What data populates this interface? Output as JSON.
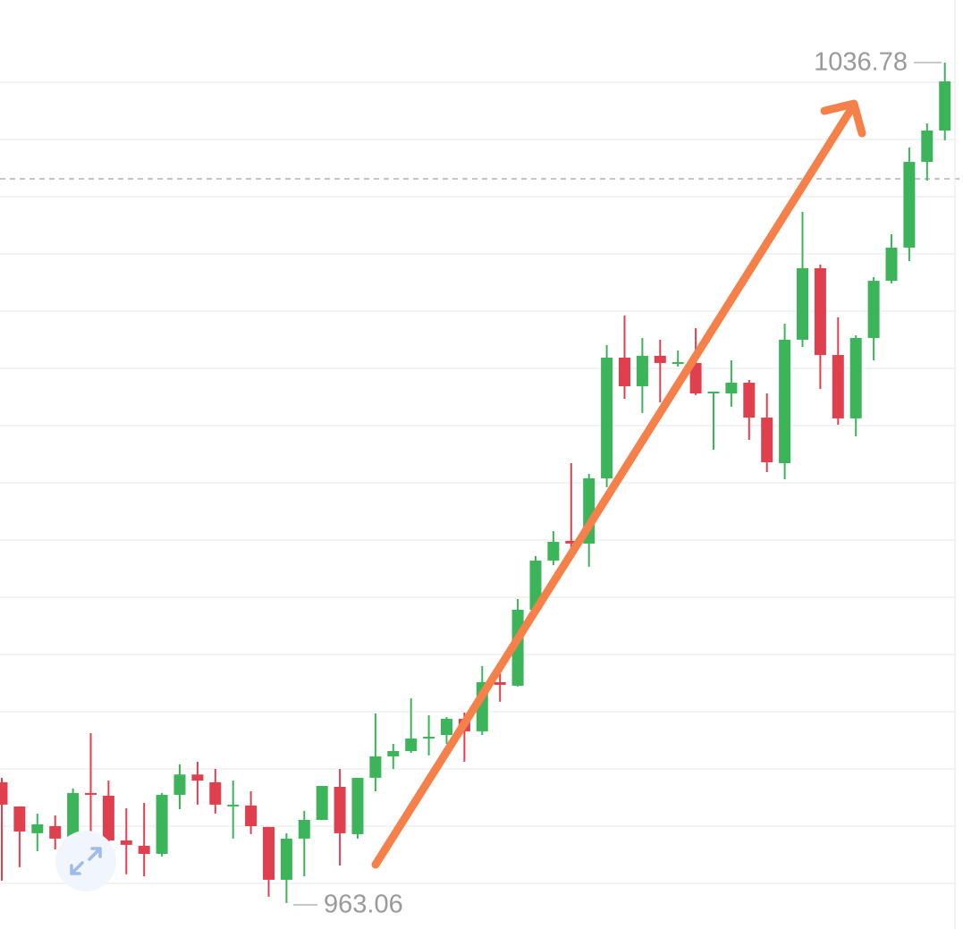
{
  "chart_data": {
    "type": "candlestick",
    "up_color": "#3cb55a",
    "down_color": "#e0404e",
    "ylim": [
      960.78,
      1042.27
    ],
    "open": [
      973.65,
      971.53,
      969.18,
      969.8,
      968.71,
      972.71,
      972.47,
      968.55,
      968.08,
      967.37,
      972.55,
      974.33,
      973.65,
      971.61,
      971.61,
      969.73,
      965.1,
      968.71,
      970.35,
      973.25,
      969.1,
      974.04,
      975.92,
      976.39,
      977.49,
      977.8,
      979.22,
      978.12,
      982.43,
      982.12,
      988.78,
      993.1,
      994.82,
      994.59,
      1000.31,
      1010.9,
      1008.39,
      1011.06,
      1010.35,
      1010.43,
      1007.76,
      1007.76,
      1008.7,
      1005.64,
      1001.64,
      1012.47,
      1018.74,
      1011.13,
      1005.57,
      1012.62,
      1017.64,
      1020.55,
      1028.07,
      1030.82
    ],
    "high": [
      974.04,
      971.53,
      970.9,
      970.74,
      973.1,
      977.96,
      973.8,
      971.37,
      971.84,
      972.71,
      975.22,
      975.45,
      974.82,
      973.8,
      972.86,
      969.73,
      969.18,
      971.14,
      973.33,
      974.82,
      974.04,
      979.69,
      977.02,
      981.02,
      979.53,
      979.37,
      979.76,
      983.84,
      983.29,
      989.72,
      993.49,
      995.68,
      1001.64,
      1000.7,
      1012.0,
      1014.59,
      1012.62,
      1012.47,
      1011.53,
      1013.49,
      1007.92,
      1010.66,
      1008.94,
      1007.76,
      1013.88,
      1023.68,
      1019.06,
      1014.43,
      1012.86,
      1017.96,
      1021.72,
      1029.33,
      1031.45,
      1036.78
    ],
    "low": [
      965.02,
      966.2,
      967.61,
      967.76,
      967.61,
      967.76,
      967.76,
      965.57,
      965.41,
      967.14,
      971.29,
      971.69,
      970.9,
      968.71,
      969.1,
      963.61,
      963.06,
      965.41,
      970.35,
      966.35,
      968.71,
      972.86,
      974.82,
      976.23,
      976.0,
      977.02,
      975.45,
      977.8,
      980.71,
      982.04,
      988.16,
      992.7,
      993.65,
      992.55,
      999.53,
      1007.29,
      1006.04,
      1006.98,
      1010.11,
      1007.61,
      1002.82,
      1006.59,
      1003.68,
      1000.86,
      1000.23,
      1011.84,
      1008.15,
      1005.02,
      1004.0,
      1010.66,
      1017.41,
      1019.37,
      1026.43,
      1029.96
    ],
    "close": [
      971.69,
      969.33,
      969.96,
      968.71,
      972.71,
      972.55,
      968.55,
      968.16,
      967.37,
      972.55,
      974.33,
      973.8,
      971.69,
      971.69,
      969.8,
      965.1,
      968.71,
      970.35,
      973.33,
      969.18,
      974.04,
      975.92,
      976.39,
      977.49,
      977.65,
      979.22,
      978.12,
      982.43,
      982.2,
      988.78,
      993.1,
      994.74,
      994.59,
      1000.31,
      1010.9,
      1008.39,
      1011.06,
      1010.43,
      1010.51,
      1007.76,
      1007.92,
      1008.7,
      1005.64,
      1001.72,
      1012.47,
      1018.74,
      1011.13,
      1005.57,
      1012.62,
      1017.64,
      1020.55,
      1028.07,
      1030.82,
      1035.13
    ]
  }
}
